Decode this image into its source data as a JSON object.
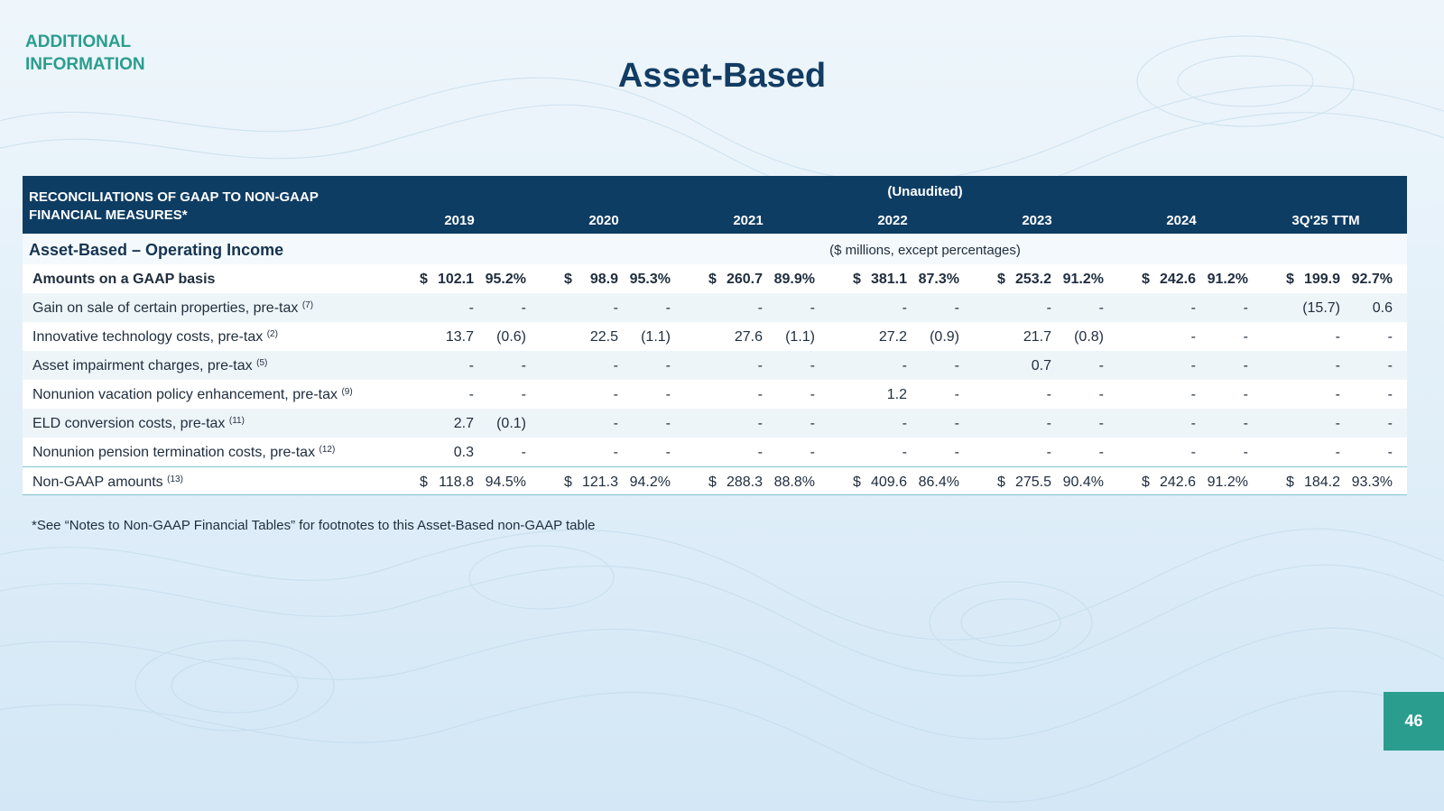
{
  "section_label": "ADDITIONAL INFORMATION",
  "title": "Asset-Based",
  "table": {
    "header_label_line1": "RECONCILIATIONS OF GAAP TO NON-GAAP",
    "header_label_line2": "FINANCIAL MEASURES*",
    "unaudited": "(Unaudited)",
    "years": [
      "2019",
      "2020",
      "2021",
      "2022",
      "2023",
      "2024",
      "3Q'25 TTM"
    ],
    "section_title": "Asset-Based – Operating Income",
    "units_note": "($ millions, except percentages)",
    "rows": [
      {
        "label": "Amounts on a GAAP basis",
        "sup": "",
        "style": "bold",
        "cells": [
          [
            "$",
            "102.1",
            "95.2%"
          ],
          [
            "$",
            "98.9",
            "95.3%"
          ],
          [
            "$",
            "260.7",
            "89.9%"
          ],
          [
            "$",
            "381.1",
            "87.3%"
          ],
          [
            "$",
            "253.2",
            "91.2%"
          ],
          [
            "$",
            "242.6",
            "91.2%"
          ],
          [
            "$",
            "199.9",
            "92.7%"
          ]
        ]
      },
      {
        "label": "Gain on sale of certain properties, pre-tax",
        "sup": "(7)",
        "style": "",
        "cells": [
          [
            "",
            "-",
            "-"
          ],
          [
            "",
            "-",
            "-"
          ],
          [
            "",
            "-",
            "-"
          ],
          [
            "",
            "-",
            "-"
          ],
          [
            "",
            "-",
            "-"
          ],
          [
            "",
            "-",
            "-"
          ],
          [
            "",
            "(15.7)",
            "0.6"
          ]
        ]
      },
      {
        "label": "Innovative technology costs, pre-tax",
        "sup": "(2)",
        "style": "",
        "cells": [
          [
            "",
            "13.7",
            "(0.6)"
          ],
          [
            "",
            "22.5",
            "(1.1)"
          ],
          [
            "",
            "27.6",
            "(1.1)"
          ],
          [
            "",
            "27.2",
            "(0.9)"
          ],
          [
            "",
            "21.7",
            "(0.8)"
          ],
          [
            "",
            "-",
            "-"
          ],
          [
            "",
            "-",
            "-"
          ]
        ]
      },
      {
        "label": "Asset impairment charges, pre-tax",
        "sup": "(5)",
        "style": "",
        "cells": [
          [
            "",
            "-",
            "-"
          ],
          [
            "",
            "-",
            "-"
          ],
          [
            "",
            "-",
            "-"
          ],
          [
            "",
            "-",
            "-"
          ],
          [
            "",
            "0.7",
            "-"
          ],
          [
            "",
            "-",
            "-"
          ],
          [
            "",
            "-",
            "-"
          ]
        ]
      },
      {
        "label": "Nonunion vacation policy enhancement, pre-tax",
        "sup": "(9)",
        "style": "",
        "cells": [
          [
            "",
            "-",
            "-"
          ],
          [
            "",
            "-",
            "-"
          ],
          [
            "",
            "-",
            "-"
          ],
          [
            "",
            "1.2",
            "-"
          ],
          [
            "",
            "-",
            "-"
          ],
          [
            "",
            "-",
            "-"
          ],
          [
            "",
            "-",
            "-"
          ]
        ]
      },
      {
        "label": "ELD conversion costs, pre-tax",
        "sup": "(11)",
        "style": "",
        "cells": [
          [
            "",
            "2.7",
            "(0.1)"
          ],
          [
            "",
            "-",
            "-"
          ],
          [
            "",
            "-",
            "-"
          ],
          [
            "",
            "-",
            "-"
          ],
          [
            "",
            "-",
            "-"
          ],
          [
            "",
            "-",
            "-"
          ],
          [
            "",
            "-",
            "-"
          ]
        ]
      },
      {
        "label": "Nonunion pension termination costs, pre-tax",
        "sup": "(12)",
        "style": "",
        "cells": [
          [
            "",
            "0.3",
            "-"
          ],
          [
            "",
            "-",
            "-"
          ],
          [
            "",
            "-",
            "-"
          ],
          [
            "",
            "-",
            "-"
          ],
          [
            "",
            "-",
            "-"
          ],
          [
            "",
            "-",
            "-"
          ],
          [
            "",
            "-",
            "-"
          ]
        ]
      },
      {
        "label": "Non-GAAP amounts",
        "sup": "(13)",
        "style": "total",
        "cells": [
          [
            "$",
            "118.8",
            "94.5%"
          ],
          [
            "$",
            "121.3",
            "94.2%"
          ],
          [
            "$",
            "288.3",
            "88.8%"
          ],
          [
            "$",
            "409.6",
            "86.4%"
          ],
          [
            "$",
            "275.5",
            "90.4%"
          ],
          [
            "$",
            "242.6",
            "91.2%"
          ],
          [
            "$",
            "184.2",
            "93.3%"
          ]
        ]
      }
    ]
  },
  "footnote": "*See “Notes to Non-GAAP Financial Tables” for footnotes to this Asset-Based non-GAAP table",
  "page_number": "46"
}
